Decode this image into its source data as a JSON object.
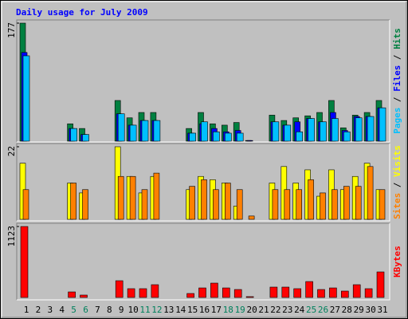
{
  "chart_data": [
    {
      "type": "bar",
      "title": "Daily usage for July 2009",
      "ylim": [
        0,
        177
      ],
      "yticks": [
        177
      ],
      "separator": "/",
      "series": [
        {
          "name": "Hits",
          "color": "#008040",
          "values": [
            177,
            0,
            0,
            0,
            26,
            19,
            0,
            0,
            61,
            35,
            43,
            43,
            0,
            0,
            19,
            43,
            26,
            24,
            28,
            1,
            0,
            39,
            31,
            35,
            38,
            43,
            61,
            20,
            39,
            43,
            61
          ]
        },
        {
          "name": "Files",
          "color": "#0000ff",
          "values": [
            133,
            0,
            0,
            0,
            19,
            10,
            0,
            0,
            41,
            24,
            31,
            31,
            0,
            0,
            12,
            26,
            19,
            14,
            16,
            1,
            0,
            29,
            24,
            29,
            34,
            29,
            43,
            16,
            37,
            37,
            50
          ]
        },
        {
          "name": "Pages",
          "color": "#00c0ff",
          "values": [
            128,
            0,
            0,
            0,
            19,
            10,
            0,
            0,
            41,
            24,
            31,
            31,
            0,
            0,
            12,
            29,
            14,
            12,
            12,
            0,
            0,
            29,
            24,
            14,
            34,
            29,
            34,
            14,
            35,
            37,
            50
          ]
        }
      ]
    },
    {
      "type": "bar",
      "ylim": [
        0,
        22
      ],
      "yticks": [
        22
      ],
      "separator": "/",
      "series": [
        {
          "name": "Visits",
          "color": "#ffff00",
          "values": [
            17,
            0,
            0,
            0,
            11,
            8,
            0,
            0,
            22,
            13,
            8,
            13,
            0,
            0,
            9,
            13,
            12,
            11,
            4,
            0,
            0,
            11,
            16,
            11,
            15,
            7,
            15,
            9,
            13,
            17,
            9
          ]
        },
        {
          "name": "Sites",
          "color": "#ff8000",
          "values": [
            9,
            0,
            0,
            0,
            11,
            9,
            0,
            0,
            13,
            13,
            9,
            14,
            0,
            0,
            10,
            12,
            9,
            11,
            9,
            1,
            0,
            9,
            9,
            9,
            12,
            8,
            9,
            10,
            10,
            16,
            9
          ]
        }
      ]
    },
    {
      "type": "bar",
      "ylim": [
        0,
        1123
      ],
      "yticks": [
        1123
      ],
      "categories": [
        "1",
        "2",
        "3",
        "4",
        "5",
        "6",
        "7",
        "8",
        "9",
        "10",
        "11",
        "12",
        "13",
        "14",
        "15",
        "16",
        "17",
        "18",
        "19",
        "20",
        "21",
        "22",
        "23",
        "24",
        "25",
        "26",
        "27",
        "28",
        "29",
        "30",
        "31"
      ],
      "label_colors": [
        "#000000",
        "#000000",
        "#000000",
        "#000000",
        "#00805c",
        "#00805c",
        "#000000",
        "#000000",
        "#000000",
        "#000000",
        "#00805c",
        "#00805c",
        "#000000",
        "#000000",
        "#000000",
        "#000000",
        "#000000",
        "#00805c",
        "#00805c",
        "#000000",
        "#000000",
        "#000000",
        "#000000",
        "#000000",
        "#00805c",
        "#00805c",
        "#000000",
        "#000000",
        "#000000",
        "#000000",
        "#000000"
      ],
      "series": [
        {
          "name": "KBytes",
          "color": "#ff0000",
          "values": [
            1123,
            0,
            0,
            0,
            88,
            38,
            0,
            0,
            265,
            139,
            139,
            202,
            0,
            0,
            63,
            151,
            227,
            151,
            126,
            13,
            0,
            164,
            164,
            139,
            252,
            126,
            151,
            101,
            202,
            139,
            404
          ]
        }
      ]
    }
  ]
}
